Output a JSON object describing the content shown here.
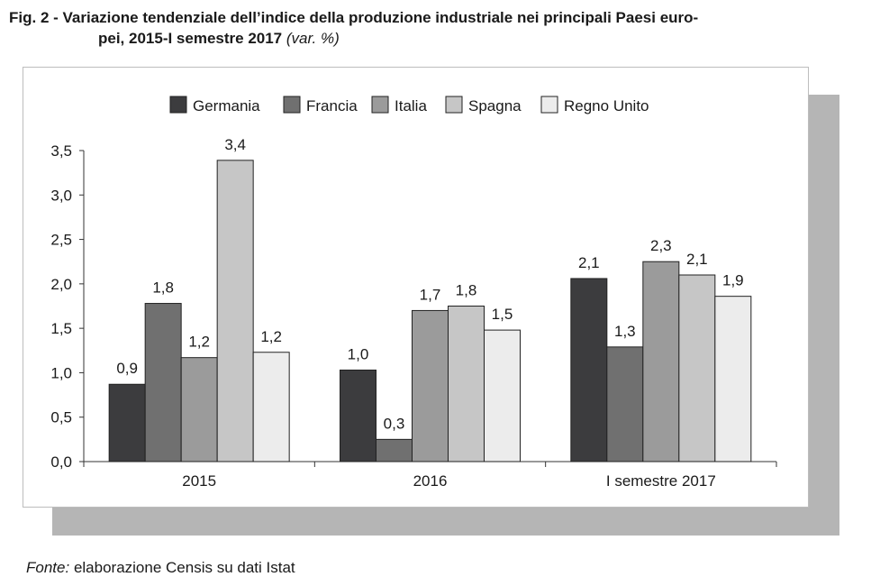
{
  "caption": {
    "prefix": "Fig. 2 -",
    "line1": "Variazione tendenziale dell’indice della produzione industriale nei principali Paesi euro-",
    "line2": "pei, 2015-I semestre 2017",
    "unit": "(var. %)"
  },
  "source": {
    "label": "Fonte:",
    "text": "elaborazione Censis su dati Istat"
  },
  "chart_data": {
    "type": "bar",
    "title": "",
    "xlabel": "",
    "ylabel": "",
    "categories": [
      "2015",
      "2016",
      "I semestre 2017"
    ],
    "ylim": [
      0,
      3.5
    ],
    "yticks": [
      0,
      0.5,
      1,
      1.5,
      2,
      2.5,
      3,
      3.5
    ],
    "ytick_labels": [
      "0,0",
      "0,5",
      "1,0",
      "1,5",
      "2,0",
      "2,5",
      "3,0",
      "3,5"
    ],
    "grid": false,
    "legend_position": "top",
    "series": [
      {
        "name": "Germania",
        "color": "#3c3c3e",
        "values": [
          0.87,
          1.03,
          2.06
        ],
        "labels": [
          "0,9",
          "1,0",
          "2,1"
        ]
      },
      {
        "name": "Francia",
        "color": "#707070",
        "values": [
          1.78,
          0.25,
          1.29
        ],
        "labels": [
          "1,8",
          "0,3",
          "1,3"
        ]
      },
      {
        "name": "Italia",
        "color": "#9b9b9b",
        "values": [
          1.17,
          1.7,
          2.25
        ],
        "labels": [
          "1,2",
          "1,7",
          "2,3"
        ]
      },
      {
        "name": "Spagna",
        "color": "#c6c6c6",
        "values": [
          3.39,
          1.75,
          2.1
        ],
        "labels": [
          "3,4",
          "1,8",
          "2,1"
        ]
      },
      {
        "name": "Regno Unito",
        "color": "#ececec",
        "values": [
          1.23,
          1.48,
          1.86
        ],
        "labels": [
          "1,2",
          "1,5",
          "1,9"
        ]
      }
    ]
  }
}
